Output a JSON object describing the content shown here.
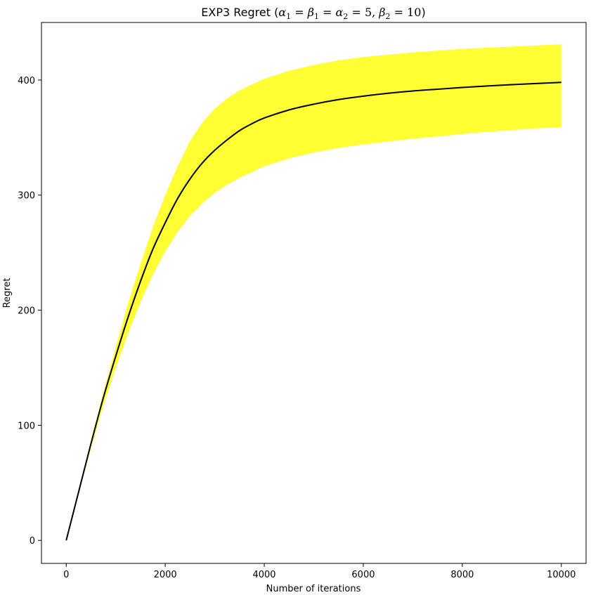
{
  "chart_data": {
    "type": "line",
    "title": {
      "prefix": "EXP3 Regret (",
      "suffix": ")",
      "math": [
        {
          "t": "α",
          "i": true
        },
        {
          "t": "1",
          "sub": true
        },
        {
          "t": " = ",
          "i": false
        },
        {
          "t": "β",
          "i": true
        },
        {
          "t": "1",
          "sub": true
        },
        {
          "t": " = ",
          "i": false
        },
        {
          "t": "α",
          "i": true
        },
        {
          "t": "2",
          "sub": true
        },
        {
          "t": " = 5, ",
          "i": false
        },
        {
          "t": "β",
          "i": true
        },
        {
          "t": "2",
          "sub": true
        },
        {
          "t": " = 10",
          "i": false
        }
      ]
    },
    "xlabel": "Number of iterations",
    "ylabel": "Regret",
    "xlim": [
      -500,
      10500
    ],
    "ylim": [
      -20,
      450
    ],
    "xticks": [
      0,
      2000,
      4000,
      6000,
      8000,
      10000
    ],
    "yticks": [
      0,
      100,
      200,
      300,
      400
    ],
    "grid": false,
    "colors": {
      "line": "#000000",
      "band": "#ffff33"
    },
    "x": [
      0,
      250,
      500,
      750,
      1000,
      1250,
      1500,
      1750,
      2000,
      2250,
      2500,
      2750,
      3000,
      3250,
      3500,
      3750,
      4000,
      4500,
      5000,
      5500,
      6000,
      6500,
      7000,
      7500,
      8000,
      8500,
      9000,
      9500,
      10000
    ],
    "series": [
      {
        "type": "line",
        "y": [
          0,
          42,
          84,
          124,
          160,
          194,
          225,
          253,
          276,
          297,
          314,
          328,
          339,
          348,
          356,
          362,
          367,
          374,
          379,
          383,
          386,
          388.5,
          390.5,
          392,
          393.5,
          394.8,
          396,
          397,
          398
        ]
      },
      {
        "type": "band",
        "upper": [
          0,
          43,
          87,
          129,
          168,
          206,
          240,
          272,
          300,
          325,
          347,
          363,
          375,
          384,
          391,
          396,
          401,
          408,
          413,
          417,
          420,
          422,
          424,
          425.5,
          427,
          428,
          429,
          430,
          431
        ],
        "lower": [
          0,
          40,
          80,
          117,
          150,
          180,
          207,
          231,
          251,
          268,
          282,
          293,
          302,
          309,
          315,
          320,
          325,
          332,
          337,
          341,
          344,
          346.5,
          349,
          351,
          353,
          355,
          356.5,
          358,
          359
        ]
      }
    ]
  }
}
